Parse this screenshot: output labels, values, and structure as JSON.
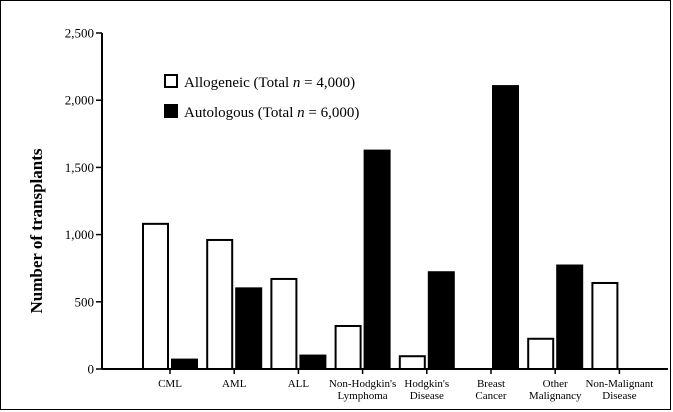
{
  "chart_data": {
    "type": "bar",
    "title": "",
    "xlabel": "",
    "ylabel": "Number of transplants",
    "ylim": [
      0,
      2500
    ],
    "yticks": [
      {
        "value": 0,
        "label": "0"
      },
      {
        "value": 500,
        "label": "500"
      },
      {
        "value": 1000,
        "label": "1,000"
      },
      {
        "value": 1500,
        "label": "1,500"
      },
      {
        "value": 2000,
        "label": "2,000"
      },
      {
        "value": 2500,
        "label": "2,500"
      }
    ],
    "categories": [
      [
        "CML"
      ],
      [
        "AML"
      ],
      [
        "ALL"
      ],
      [
        "Non-Hodgkin's",
        "Lymphoma"
      ],
      [
        "Hodgkin's",
        "Disease"
      ],
      [
        "Breast",
        "Cancer"
      ],
      [
        "Other",
        "Malignancy"
      ],
      [
        "Non-Malignant",
        "Disease"
      ]
    ],
    "series": [
      {
        "name_prefix": "Allogeneic (Total ",
        "name_n": "n",
        "name_suffix": " = 4,000)",
        "fill": "#ffffff",
        "values": [
          1080,
          960,
          670,
          320,
          95,
          0,
          225,
          640
        ]
      },
      {
        "name_prefix": "Autologous (Total ",
        "name_n": "n",
        "name_suffix": " = 6,000)",
        "fill": "#000000",
        "values": [
          70,
          600,
          100,
          1625,
          720,
          2105,
          770,
          0
        ]
      }
    ],
    "legend_position": "top-left",
    "grid": false
  }
}
